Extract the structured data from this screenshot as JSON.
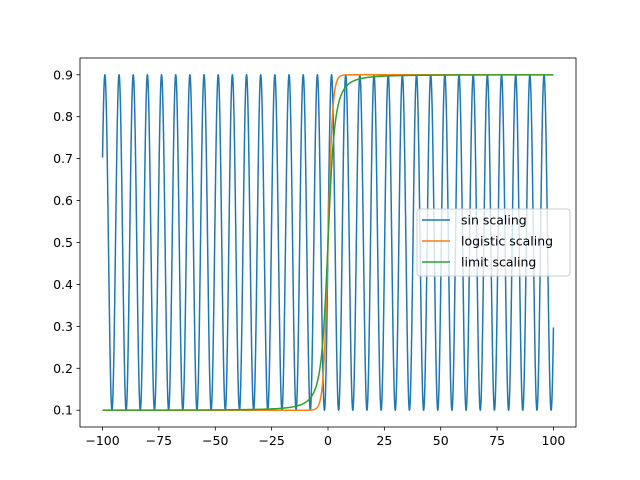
{
  "chart_data": {
    "type": "line",
    "title": "",
    "xlabel": "",
    "ylabel": "",
    "xlim": [
      -110,
      110
    ],
    "ylim": [
      0.06,
      0.94
    ],
    "x_ticks": [
      -100,
      -75,
      -50,
      -25,
      0,
      25,
      50,
      75,
      100
    ],
    "y_ticks": [
      0.1,
      0.2,
      0.3,
      0.4,
      0.5,
      0.6,
      0.7,
      0.8,
      0.9
    ],
    "x_range": [
      -100,
      100
    ],
    "grid": false,
    "legend_position": "center-right",
    "series": [
      {
        "name": "sin scaling",
        "color": "#1f77b4",
        "function": "0.5 + 0.4*sin(x)",
        "y_min": 0.1,
        "y_max": 0.9
      },
      {
        "name": "logistic scaling",
        "color": "#ff7f0e",
        "function": "0.1 + 0.8/(1 + exp(-x))",
        "y_min": 0.1,
        "y_max": 0.9
      },
      {
        "name": "limit scaling",
        "color": "#2ca02c",
        "function": "0.5 + 0.4*x/sqrt(x^2 + 10)",
        "y_min": 0.1,
        "y_max": 0.9
      }
    ]
  }
}
